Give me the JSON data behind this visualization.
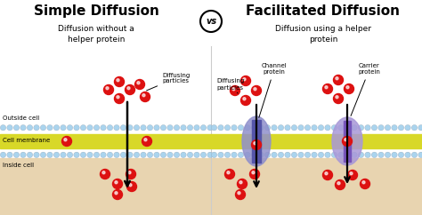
{
  "bg_color": "#ffffff",
  "title_left": "Simple Diffusion",
  "title_right": "Facilitated Diffusion",
  "subtitle_left": "Diffusion without a\nhelper protein",
  "subtitle_right": "Diffusion using a helper\nprotein",
  "vs_text": "vs",
  "label_outside": "Outside cell",
  "label_membrane": "Cell membrane",
  "label_inside": "Inside cell",
  "label_diffusing_left": "Diffusing\nparticles",
  "label_diffusing_right": "Diffusing\nparticles",
  "label_channel": "Channel\nprotein",
  "label_carrier": "Carrier\nprotein",
  "membrane_yellow": "#d8d828",
  "membrane_head_color": "#aad4ee",
  "inside_cell_color": "#e8d4b0",
  "particle_color": "#dd1111",
  "channel_protein_color": "#9090cc",
  "carrier_protein_color": "#a898d8",
  "title_fontsize": 11,
  "subtitle_fontsize": 6.5,
  "label_fontsize": 5.0,
  "annot_fontsize": 5.0
}
